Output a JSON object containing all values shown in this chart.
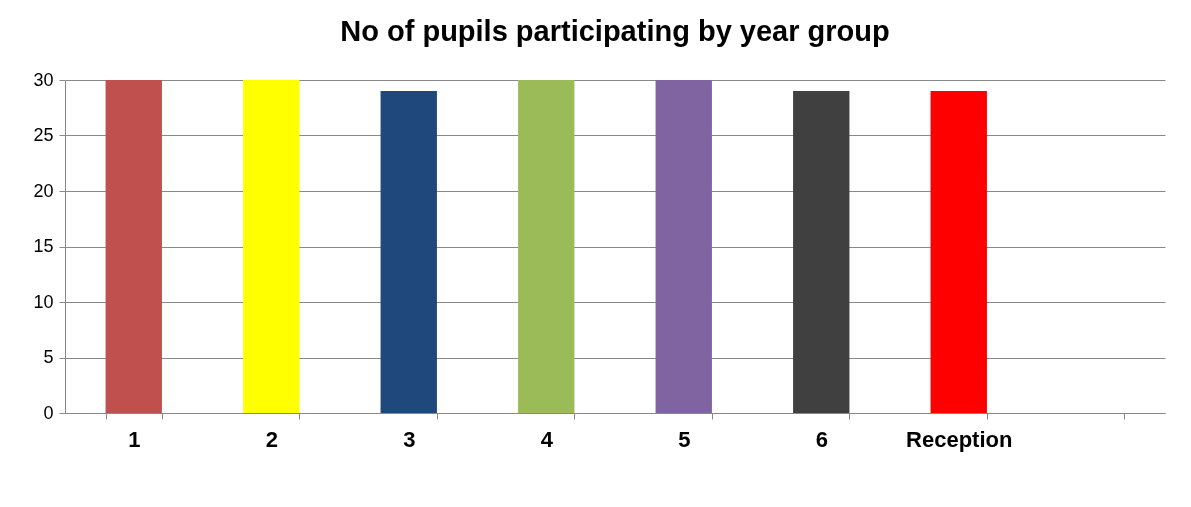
{
  "chart_data": {
    "type": "bar",
    "title": "No of pupils participating by year group",
    "categories": [
      "1",
      "2",
      "3",
      "4",
      "5",
      "6",
      "Reception",
      null
    ],
    "values": [
      30,
      30,
      29,
      30,
      30,
      29,
      29,
      null
    ],
    "colors": [
      "#c0504d",
      "#ffff00",
      "#1f497d",
      "#9bbb59",
      "#8064a2",
      "#404040",
      "#ff0000",
      null
    ],
    "ylim": [
      0,
      30
    ],
    "yticks": [
      0,
      5,
      10,
      15,
      20,
      25,
      30
    ],
    "grid": "y",
    "legend": false
  }
}
